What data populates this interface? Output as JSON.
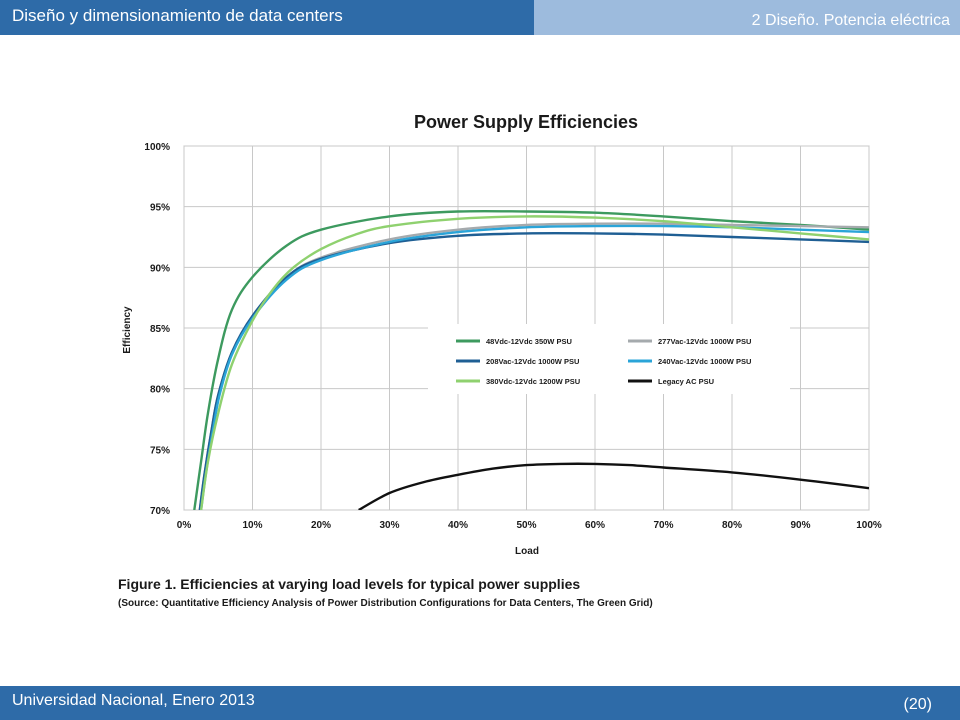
{
  "header": {
    "title": "Diseño y dimensionamiento de data centers",
    "section": "2 Diseño. Potencia eléctrica"
  },
  "footer": {
    "institution": "Universidad Nacional, Enero 2013",
    "page": "(20)"
  },
  "figure": {
    "caption": "Figure 1. Efficiencies at varying load levels for typical power supplies",
    "source": "(Source: Quantitative Efficiency Analysis of Power Distribution Configurations for Data Centers, The Green Grid)"
  },
  "chart_data": {
    "type": "line",
    "title": "Power Supply Efficiencies",
    "xlabel": "Load",
    "ylabel": "Efficiency",
    "xlim": [
      0,
      100
    ],
    "ylim": [
      70,
      100
    ],
    "x_ticks": [
      0,
      10,
      20,
      30,
      40,
      50,
      60,
      70,
      80,
      90,
      100
    ],
    "x_tick_labels": [
      "0%",
      "10%",
      "20%",
      "30%",
      "40%",
      "50%",
      "60%",
      "70%",
      "80%",
      "90%",
      "100%"
    ],
    "y_ticks": [
      70,
      75,
      80,
      85,
      90,
      95,
      100
    ],
    "y_tick_labels": [
      "70%",
      "75%",
      "80%",
      "85%",
      "90%",
      "95%",
      "100%"
    ],
    "grid": true,
    "legend_position": "center-right",
    "series": [
      {
        "name": "48Vdc-12Vdc 350W PSU",
        "color": "#3d9a5f",
        "x": [
          1.5,
          2.5,
          3.5,
          5,
          7,
          10,
          15,
          20,
          30,
          40,
          50,
          60,
          70,
          80,
          90,
          100
        ],
        "y": [
          70,
          74,
          78,
          82.5,
          86.5,
          89.2,
          91.8,
          93.1,
          94.2,
          94.6,
          94.6,
          94.5,
          94.2,
          93.8,
          93.5,
          93.1
        ]
      },
      {
        "name": "277Vac-12Vdc 1000W PSU",
        "color": "#a5aaad",
        "x": [
          2.3,
          3,
          4,
          5,
          7,
          10,
          15,
          20,
          30,
          40,
          50,
          60,
          70,
          80,
          90,
          100
        ],
        "y": [
          70,
          73,
          76.5,
          79.5,
          83,
          86,
          89.2,
          90.8,
          92.3,
          93.1,
          93.5,
          93.6,
          93.6,
          93.5,
          93.4,
          93.3
        ]
      },
      {
        "name": "208Vac-12Vdc 1000W PSU",
        "color": "#1f5f94",
        "x": [
          2.3,
          3,
          4,
          5,
          7,
          10,
          15,
          20,
          30,
          40,
          50,
          60,
          70,
          80,
          90,
          100
        ],
        "y": [
          70,
          73,
          76.5,
          79.5,
          83,
          86,
          89.2,
          90.7,
          92,
          92.6,
          92.8,
          92.8,
          92.7,
          92.5,
          92.3,
          92.1
        ]
      },
      {
        "name": "240Vac-12Vdc 1000W PSU",
        "color": "#2aa4d8",
        "x": [
          2.5,
          3.2,
          4.2,
          5.2,
          7,
          10,
          15,
          20,
          30,
          40,
          50,
          60,
          70,
          80,
          90,
          100
        ],
        "y": [
          70,
          73,
          76.5,
          79.5,
          82.8,
          85.8,
          89,
          90.6,
          92.1,
          92.9,
          93.3,
          93.4,
          93.4,
          93.3,
          93.1,
          92.9
        ]
      },
      {
        "name": "380Vdc-12Vdc 1200W PSU",
        "color": "#8fd16f",
        "x": [
          2.5,
          3.5,
          5,
          7,
          10,
          13,
          16,
          20,
          25,
          30,
          40,
          50,
          60,
          70,
          80,
          90,
          100
        ],
        "y": [
          70,
          74,
          78,
          82,
          85.6,
          88.2,
          90,
          91.5,
          92.7,
          93.4,
          94,
          94.2,
          94.1,
          93.8,
          93.3,
          92.8,
          92.3
        ]
      },
      {
        "name": "Legacy AC PSU",
        "color": "#111111",
        "x": [
          25.5,
          30,
          35,
          40,
          45,
          50,
          55,
          60,
          65,
          70,
          80,
          90,
          100
        ],
        "y": [
          70,
          71.4,
          72.3,
          72.9,
          73.4,
          73.7,
          73.8,
          73.8,
          73.7,
          73.5,
          73.1,
          72.5,
          71.8
        ]
      }
    ]
  }
}
